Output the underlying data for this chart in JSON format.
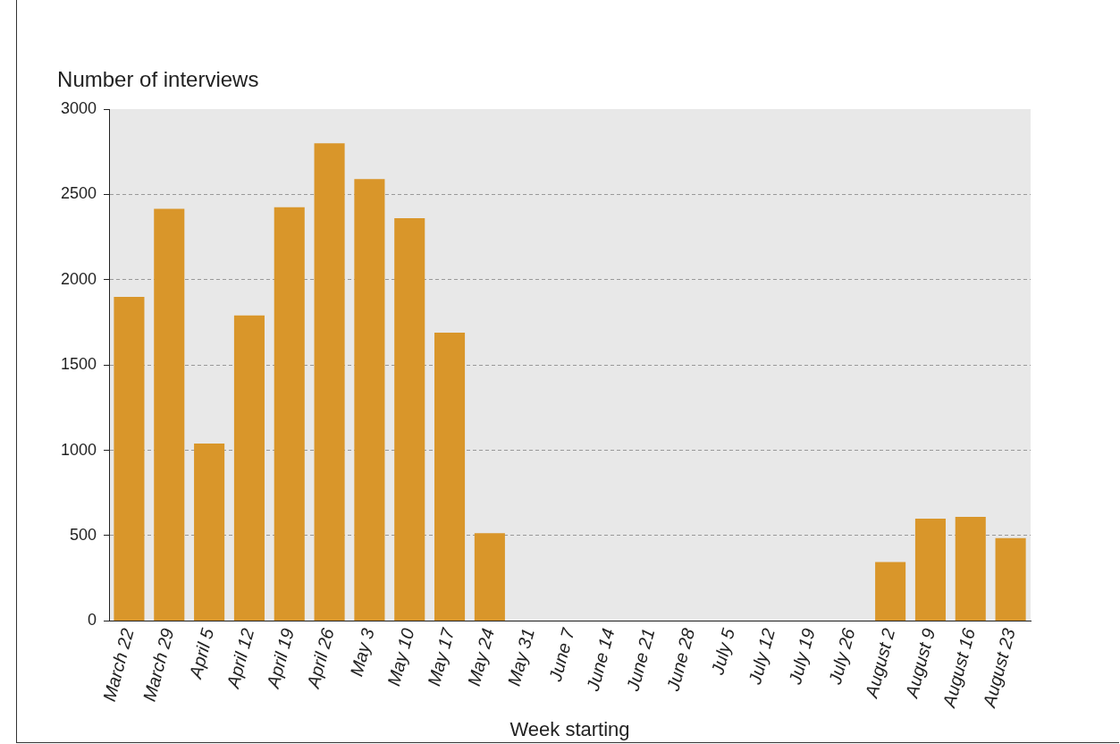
{
  "chart_data": {
    "type": "bar",
    "ylabel": "Number of interviews",
    "xlabel": "Week starting",
    "categories": [
      "March 22",
      "March 29",
      "April 5",
      "April 12",
      "April 19",
      "April 26",
      "May 3",
      "May 10",
      "May 17",
      "May 24",
      "May 31",
      "June 7",
      "June 14",
      "June 21",
      "June 28",
      "July 5",
      "July 12",
      "July 19",
      "July 26",
      "August 2",
      "August 9",
      "August 16",
      "August 23"
    ],
    "values": [
      1900,
      2415,
      1040,
      1790,
      2425,
      2800,
      2590,
      2360,
      1690,
      515,
      0,
      0,
      0,
      0,
      0,
      0,
      0,
      0,
      0,
      345,
      600,
      610,
      485
    ],
    "color": "#d9962a",
    "ylim": [
      0,
      3000
    ],
    "yticks": [
      0,
      500,
      1000,
      1500,
      2000,
      2500,
      3000
    ],
    "grid": "y",
    "legend": false
  }
}
